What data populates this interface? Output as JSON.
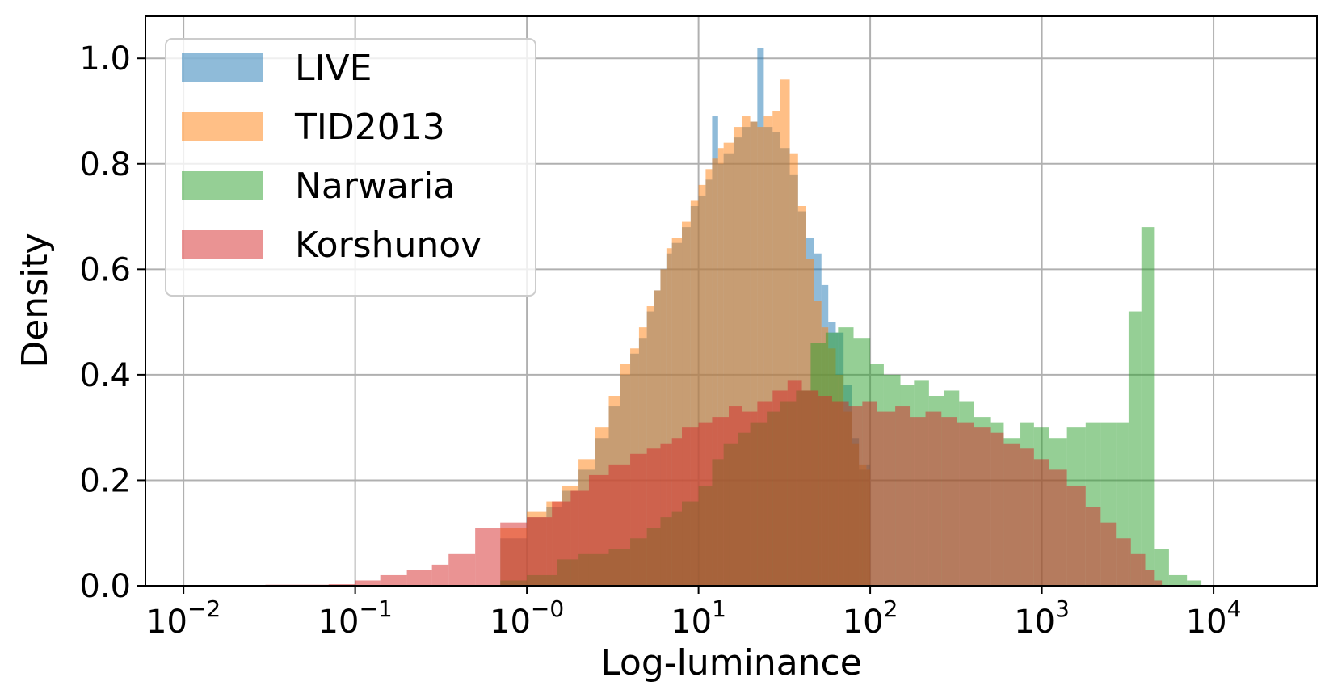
{
  "chart_data": {
    "type": "histogram",
    "xlabel": "Log-luminance",
    "ylabel": "Density",
    "x_scale": "log",
    "x_range": [
      0.006,
      40000
    ],
    "y_range": [
      0,
      1.08
    ],
    "x_ticks": [
      {
        "base": "10",
        "exp": "−2",
        "value": 0.01
      },
      {
        "base": "10",
        "exp": "−1",
        "value": 0.1
      },
      {
        "base": "10",
        "exp": "−0",
        "value": 1
      },
      {
        "base": "10",
        "exp": "1",
        "value": 10
      },
      {
        "base": "10",
        "exp": "2",
        "value": 100
      },
      {
        "base": "10",
        "exp": "3",
        "value": 1000
      },
      {
        "base": "10",
        "exp": "4",
        "value": 10000
      }
    ],
    "y_ticks": [
      "0.0",
      "0.2",
      "0.4",
      "0.6",
      "0.8",
      "1.0"
    ],
    "grid": true,
    "legend_position": "top-left",
    "series": [
      {
        "name": "LIVE",
        "color": "#1f77b4",
        "alpha": 0.5,
        "bins": [
          [
            0.5,
            0.0
          ],
          [
            0.7,
            0.09
          ],
          [
            1.0,
            0.13
          ],
          [
            1.3,
            0.15
          ],
          [
            1.6,
            0.18
          ],
          [
            2.0,
            0.22
          ],
          [
            2.5,
            0.28
          ],
          [
            3.0,
            0.34
          ],
          [
            3.5,
            0.4
          ],
          [
            4.0,
            0.44
          ],
          [
            4.5,
            0.47
          ],
          [
            5.0,
            0.52
          ],
          [
            5.5,
            0.56
          ],
          [
            6.0,
            0.6
          ],
          [
            6.5,
            0.63
          ],
          [
            7.0,
            0.65
          ],
          [
            8.0,
            0.68
          ],
          [
            9.0,
            0.72
          ],
          [
            10.0,
            0.74
          ],
          [
            11.0,
            0.77
          ],
          [
            12.0,
            0.89
          ],
          [
            13.0,
            0.8
          ],
          [
            14.0,
            0.82
          ],
          [
            16.0,
            0.85
          ],
          [
            18.0,
            0.87
          ],
          [
            20.0,
            0.88
          ],
          [
            22.0,
            1.02
          ],
          [
            24.0,
            0.87
          ],
          [
            27.0,
            0.86
          ],
          [
            30.0,
            0.83
          ],
          [
            34.0,
            0.78
          ],
          [
            38.0,
            0.71
          ],
          [
            42.0,
            0.66
          ],
          [
            47.0,
            0.63
          ],
          [
            52.0,
            0.57
          ],
          [
            57.0,
            0.5
          ],
          [
            63.0,
            0.48
          ],
          [
            70.0,
            0.38
          ],
          [
            78.0,
            0.28
          ],
          [
            86.0,
            0.22
          ],
          [
            95.0,
            0.23
          ],
          [
            100.0,
            0.0
          ]
        ]
      },
      {
        "name": "TID2013",
        "color": "#ff7f0e",
        "alpha": 0.5,
        "bins": [
          [
            0.5,
            0.0
          ],
          [
            0.7,
            0.11
          ],
          [
            1.0,
            0.14
          ],
          [
            1.3,
            0.16
          ],
          [
            1.6,
            0.19
          ],
          [
            2.0,
            0.24
          ],
          [
            2.5,
            0.3
          ],
          [
            3.0,
            0.36
          ],
          [
            3.5,
            0.42
          ],
          [
            4.0,
            0.45
          ],
          [
            4.5,
            0.49
          ],
          [
            5.0,
            0.53
          ],
          [
            5.5,
            0.56
          ],
          [
            6.0,
            0.6
          ],
          [
            6.5,
            0.64
          ],
          [
            7.0,
            0.66
          ],
          [
            8.0,
            0.69
          ],
          [
            9.0,
            0.73
          ],
          [
            10.0,
            0.76
          ],
          [
            11.0,
            0.79
          ],
          [
            12.0,
            0.81
          ],
          [
            13.0,
            0.83
          ],
          [
            14.0,
            0.84
          ],
          [
            16.0,
            0.87
          ],
          [
            18.0,
            0.89
          ],
          [
            20.0,
            0.88
          ],
          [
            22.0,
            0.87
          ],
          [
            24.0,
            0.89
          ],
          [
            27.0,
            0.9
          ],
          [
            30.0,
            0.96
          ],
          [
            34.0,
            0.82
          ],
          [
            38.0,
            0.72
          ],
          [
            42.0,
            0.62
          ],
          [
            47.0,
            0.54
          ],
          [
            52.0,
            0.49
          ],
          [
            57.0,
            0.45
          ],
          [
            63.0,
            0.4
          ],
          [
            70.0,
            0.33
          ],
          [
            78.0,
            0.27
          ],
          [
            86.0,
            0.23
          ],
          [
            95.0,
            0.22
          ],
          [
            100.0,
            0.0
          ]
        ]
      },
      {
        "name": "Narwaria",
        "color": "#2ca02c",
        "alpha": 0.5,
        "bins": [
          [
            0.5,
            0.0
          ],
          [
            0.7,
            0.01
          ],
          [
            1.0,
            0.02
          ],
          [
            1.5,
            0.05
          ],
          [
            2.0,
            0.06
          ],
          [
            3.0,
            0.07
          ],
          [
            4.0,
            0.09
          ],
          [
            5.0,
            0.11
          ],
          [
            6.0,
            0.13
          ],
          [
            7.0,
            0.14
          ],
          [
            8.0,
            0.16
          ],
          [
            10.0,
            0.19
          ],
          [
            12.0,
            0.24
          ],
          [
            14.0,
            0.27
          ],
          [
            17.0,
            0.29
          ],
          [
            20.0,
            0.31
          ],
          [
            25.0,
            0.33
          ],
          [
            30.0,
            0.35
          ],
          [
            37.0,
            0.37
          ],
          [
            45.0,
            0.46
          ],
          [
            55.0,
            0.48
          ],
          [
            65.0,
            0.49
          ],
          [
            80.0,
            0.47
          ],
          [
            100.0,
            0.42
          ],
          [
            120.0,
            0.4
          ],
          [
            150.0,
            0.38
          ],
          [
            180.0,
            0.39
          ],
          [
            220.0,
            0.36
          ],
          [
            270.0,
            0.37
          ],
          [
            330.0,
            0.35
          ],
          [
            400.0,
            0.32
          ],
          [
            500.0,
            0.31
          ],
          [
            600.0,
            0.28
          ],
          [
            750.0,
            0.31
          ],
          [
            900.0,
            0.3
          ],
          [
            1100.0,
            0.28
          ],
          [
            1400.0,
            0.3
          ],
          [
            1800.0,
            0.31
          ],
          [
            2200.0,
            0.31
          ],
          [
            2700.0,
            0.31
          ],
          [
            3200.0,
            0.52
          ],
          [
            3800.0,
            0.68
          ],
          [
            4500.0,
            0.07
          ],
          [
            5500.0,
            0.02
          ],
          [
            7000.0,
            0.01
          ],
          [
            8500.0,
            0.0
          ]
        ]
      },
      {
        "name": "Korshunov",
        "color": "#d62728",
        "alpha": 0.5,
        "bins": [
          [
            0.02,
            0.0
          ],
          [
            0.03,
            0.002
          ],
          [
            0.05,
            0.002
          ],
          [
            0.07,
            0.003
          ],
          [
            0.1,
            0.01
          ],
          [
            0.14,
            0.02
          ],
          [
            0.2,
            0.03
          ],
          [
            0.28,
            0.04
          ],
          [
            0.35,
            0.06
          ],
          [
            0.5,
            0.11
          ],
          [
            0.7,
            0.12
          ],
          [
            1.0,
            0.13
          ],
          [
            1.4,
            0.16
          ],
          [
            1.8,
            0.18
          ],
          [
            2.3,
            0.21
          ],
          [
            3.0,
            0.23
          ],
          [
            4.0,
            0.25
          ],
          [
            5.0,
            0.26
          ],
          [
            6.0,
            0.27
          ],
          [
            7.0,
            0.28
          ],
          [
            8.0,
            0.3
          ],
          [
            10.0,
            0.31
          ],
          [
            12.0,
            0.32
          ],
          [
            15.0,
            0.34
          ],
          [
            18.0,
            0.33
          ],
          [
            22.0,
            0.35
          ],
          [
            27.0,
            0.37
          ],
          [
            33.0,
            0.39
          ],
          [
            40.0,
            0.37
          ],
          [
            50.0,
            0.36
          ],
          [
            60.0,
            0.35
          ],
          [
            75.0,
            0.34
          ],
          [
            90.0,
            0.35
          ],
          [
            110.0,
            0.33
          ],
          [
            140.0,
            0.34
          ],
          [
            170.0,
            0.32
          ],
          [
            210.0,
            0.33
          ],
          [
            260.0,
            0.32
          ],
          [
            320.0,
            0.31
          ],
          [
            400.0,
            0.3
          ],
          [
            500.0,
            0.29
          ],
          [
            600.0,
            0.27
          ],
          [
            750.0,
            0.26
          ],
          [
            900.0,
            0.24
          ],
          [
            1100.0,
            0.22
          ],
          [
            1400.0,
            0.19
          ],
          [
            1800.0,
            0.15
          ],
          [
            2200.0,
            0.12
          ],
          [
            2700.0,
            0.09
          ],
          [
            3300.0,
            0.06
          ],
          [
            4000.0,
            0.03
          ],
          [
            4500.0,
            0.01
          ],
          [
            5000.0,
            0.0
          ]
        ]
      }
    ]
  }
}
